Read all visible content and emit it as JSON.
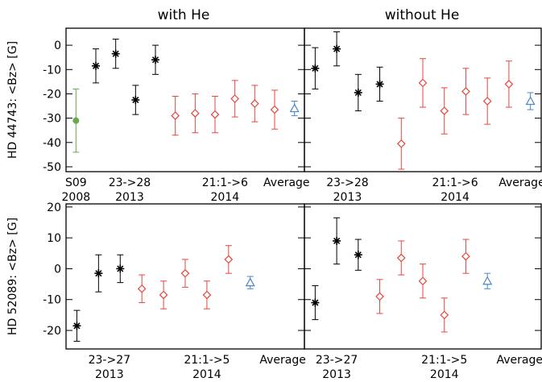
{
  "figure": {
    "col_titles": [
      "with He",
      "without He"
    ]
  },
  "colors": {
    "green": "#6aa84f",
    "black": "#000000",
    "red": "#e8453c",
    "blue": "#4a86c8"
  },
  "chart_data": [
    {
      "type": "scatter",
      "panel": "top-left",
      "ylabel": "HD 44743: <Bz> [G]",
      "ylim": [
        -52,
        7
      ],
      "yticks": [
        0,
        -10,
        -20,
        -30,
        -40,
        -50
      ],
      "xlim": [
        0.5,
        12.5
      ],
      "categories": [
        {
          "line1": "S09",
          "line2": "2008",
          "x": 1
        },
        {
          "line1": "23->28",
          "line2": "2013",
          "x": 3.7
        },
        {
          "line1": "21:1->6",
          "line2": "2014",
          "x": 8.5
        },
        {
          "line1": "Average",
          "line2": "",
          "x": 11.6
        }
      ],
      "series": [
        {
          "group": "S09 2008",
          "color": "green",
          "marker": "circle",
          "points": [
            {
              "x": 1,
              "y": -31,
              "err": 13
            }
          ]
        },
        {
          "group": "2013",
          "color": "black",
          "marker": "star",
          "points": [
            {
              "x": 2,
              "y": -8.5,
              "err": 7
            },
            {
              "x": 3,
              "y": -3.5,
              "err": 6
            },
            {
              "x": 4,
              "y": -22.5,
              "err": 6
            },
            {
              "x": 5,
              "y": -6,
              "err": 6
            }
          ]
        },
        {
          "group": "2014",
          "color": "red",
          "marker": "diamond",
          "points": [
            {
              "x": 6,
              "y": -29,
              "err": 8
            },
            {
              "x": 7,
              "y": -28,
              "err": 8
            },
            {
              "x": 8,
              "y": -28.5,
              "err": 7.5
            },
            {
              "x": 9,
              "y": -22,
              "err": 7.5
            },
            {
              "x": 10,
              "y": -24,
              "err": 7.5
            },
            {
              "x": 11,
              "y": -26.5,
              "err": 8
            }
          ]
        },
        {
          "group": "Average",
          "color": "blue",
          "marker": "triangle",
          "points": [
            {
              "x": 12,
              "y": -26,
              "err": 3
            }
          ]
        }
      ]
    },
    {
      "type": "scatter",
      "panel": "top-right",
      "ylabel": "",
      "ylim": [
        -52,
        7
      ],
      "yticks": [
        0,
        -10,
        -20,
        -30,
        -40,
        -50
      ],
      "xlim": [
        0.5,
        11.5
      ],
      "categories": [
        {
          "line1": "23->28",
          "line2": "2013",
          "x": 2.5
        },
        {
          "line1": "21:1->6",
          "line2": "2014",
          "x": 7.5
        },
        {
          "line1": "Average",
          "line2": "",
          "x": 10.6
        }
      ],
      "series": [
        {
          "group": "2013",
          "color": "black",
          "marker": "star",
          "points": [
            {
              "x": 1,
              "y": -9.5,
              "err": 8.5
            },
            {
              "x": 2,
              "y": -1.5,
              "err": 7
            },
            {
              "x": 3,
              "y": -19.5,
              "err": 7.5
            },
            {
              "x": 4,
              "y": -16,
              "err": 7
            }
          ]
        },
        {
          "group": "2014",
          "color": "red",
          "marker": "diamond",
          "points": [
            {
              "x": 5,
              "y": -40.5,
              "err": 10.5
            },
            {
              "x": 6,
              "y": -15.5,
              "err": 10
            },
            {
              "x": 7,
              "y": -27,
              "err": 9.5
            },
            {
              "x": 8,
              "y": -19,
              "err": 9.5
            },
            {
              "x": 9,
              "y": -23,
              "err": 9.5
            },
            {
              "x": 10,
              "y": -16,
              "err": 9.5
            }
          ]
        },
        {
          "group": "Average",
          "color": "blue",
          "marker": "triangle",
          "points": [
            {
              "x": 11,
              "y": -23,
              "err": 3.5
            }
          ]
        }
      ]
    },
    {
      "type": "scatter",
      "panel": "bottom-left",
      "ylabel": "HD 52089: <Bz> [G]",
      "ylim": [
        -26,
        21
      ],
      "yticks": [
        20,
        10,
        0,
        -10,
        -20
      ],
      "xlim": [
        0.5,
        11.5
      ],
      "categories": [
        {
          "line1": "23->27",
          "line2": "2013",
          "x": 2.5
        },
        {
          "line1": "21:1->5",
          "line2": "2014",
          "x": 7
        },
        {
          "line1": "Average",
          "line2": "",
          "x": 10.5
        }
      ],
      "series": [
        {
          "group": "2013",
          "color": "black",
          "marker": "star",
          "points": [
            {
              "x": 1,
              "y": -18.5,
              "err": 5
            },
            {
              "x": 2,
              "y": -1.5,
              "err": 6
            },
            {
              "x": 3,
              "y": 0,
              "err": 4.5
            }
          ]
        },
        {
          "group": "2014",
          "color": "red",
          "marker": "diamond",
          "points": [
            {
              "x": 4,
              "y": -6.5,
              "err": 4.5
            },
            {
              "x": 5,
              "y": -8.5,
              "err": 4.5
            },
            {
              "x": 6,
              "y": -1.5,
              "err": 4.5
            },
            {
              "x": 7,
              "y": -8.5,
              "err": 4.5
            },
            {
              "x": 8,
              "y": 3,
              "err": 4.5
            }
          ]
        },
        {
          "group": "Average",
          "color": "blue",
          "marker": "triangle",
          "points": [
            {
              "x": 9,
              "y": -4.5,
              "err": 2
            }
          ]
        }
      ]
    },
    {
      "type": "scatter",
      "panel": "bottom-right",
      "ylabel": "",
      "ylim": [
        -26,
        21
      ],
      "yticks": [
        20,
        10,
        0,
        -10,
        -20
      ],
      "xlim": [
        0.5,
        11.5
      ],
      "categories": [
        {
          "line1": "23->27",
          "line2": "2013",
          "x": 2
        },
        {
          "line1": "21:1->5",
          "line2": "2014",
          "x": 7
        },
        {
          "line1": "Average",
          "line2": "",
          "x": 10.5
        }
      ],
      "series": [
        {
          "group": "2013",
          "color": "black",
          "marker": "star",
          "points": [
            {
              "x": 1,
              "y": -11,
              "err": 5.5
            },
            {
              "x": 2,
              "y": 9,
              "err": 7.5
            },
            {
              "x": 3,
              "y": 4.5,
              "err": 5
            }
          ]
        },
        {
          "group": "2014",
          "color": "red",
          "marker": "diamond",
          "points": [
            {
              "x": 4,
              "y": -9,
              "err": 5.5
            },
            {
              "x": 5,
              "y": 3.5,
              "err": 5.5
            },
            {
              "x": 6,
              "y": -4,
              "err": 5.5
            },
            {
              "x": 7,
              "y": -15,
              "err": 5.5
            },
            {
              "x": 8,
              "y": 4,
              "err": 5.5
            }
          ]
        },
        {
          "group": "Average",
          "color": "blue",
          "marker": "triangle",
          "points": [
            {
              "x": 9,
              "y": -4,
              "err": 2.5
            }
          ]
        }
      ]
    }
  ]
}
